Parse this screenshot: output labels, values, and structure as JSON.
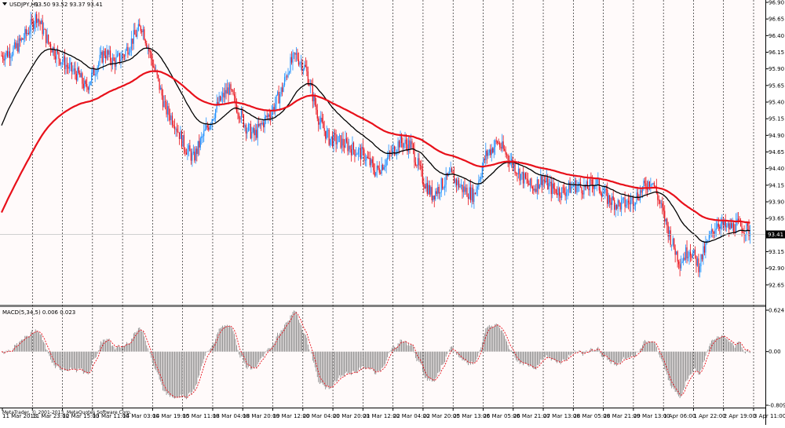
{
  "window": {
    "title": "USDJPY,H1",
    "quote": "93.50 93.52 93.37 93.41",
    "menu_icon": "triangle-down-icon",
    "copyright": "MetaTrader, © 2001-2013, MetaQuotes Software Corp."
  },
  "colors": {
    "background": "#fffafa",
    "bull": "#1e90ff",
    "bear": "#e8101a",
    "ma_fast": "#000000",
    "ma_slow": "#e8101a",
    "macd_bar": "#808080",
    "macd_signal": "#e8101a",
    "grid": "#000000"
  },
  "chart_data": [
    {
      "type": "candlestick",
      "title": "USDJPY,H1",
      "subtitle": "93.50 93.52 93.37 93.41",
      "ylim": [
        92.4,
        96.9
      ],
      "ytick_labels": [
        "96.90",
        "96.65",
        "96.40",
        "96.15",
        "95.90",
        "95.65",
        "95.40",
        "95.15",
        "94.90",
        "94.65",
        "94.40",
        "94.15",
        "93.90",
        "93.65",
        "93.40",
        "93.15",
        "92.90",
        "92.65"
      ],
      "current_price": "93.41",
      "x_tick_labels": [
        "11 Mar 2013",
        "11 Mar 23:00",
        "12 Mar 15:00",
        "13 Mar 11:00",
        "14 Mar 03:00",
        "14 Mar 19:00",
        "15 Mar 11:00",
        "18 Mar 04:00",
        "18 Mar 20:00",
        "19 Mar 12:00",
        "20 Mar 04:00",
        "20 Mar 20:00",
        "21 Mar 12:00",
        "22 Mar 04:00",
        "22 Mar 20:00",
        "25 Mar 13:00",
        "26 Mar 05:00",
        "26 Mar 21:00",
        "27 Mar 13:00",
        "28 Mar 05:00",
        "28 Mar 21:00",
        "29 Mar 13:00",
        "1 Apr 06:00",
        "1 Apr 22:00",
        "2 Apr 19:00",
        "3 Apr 11:00"
      ],
      "grid": "vertical dotted lines at x ticks",
      "close_path": [
        [
          0,
          96.1
        ],
        [
          12,
          96.2
        ],
        [
          22,
          96.45
        ],
        [
          30,
          96.7
        ],
        [
          40,
          96.3
        ],
        [
          48,
          96.1
        ],
        [
          58,
          95.9
        ],
        [
          66,
          95.8
        ],
        [
          72,
          95.6
        ],
        [
          80,
          95.9
        ],
        [
          88,
          96.15
        ],
        [
          96,
          96.0
        ],
        [
          104,
          96.1
        ],
        [
          112,
          96.35
        ],
        [
          120,
          96.55
        ],
        [
          128,
          96.05
        ],
        [
          134,
          95.7
        ],
        [
          140,
          95.3
        ],
        [
          148,
          95.1
        ],
        [
          156,
          94.75
        ],
        [
          164,
          94.55
        ],
        [
          170,
          94.8
        ],
        [
          178,
          95.1
        ],
        [
          186,
          95.4
        ],
        [
          194,
          95.6
        ],
        [
          202,
          95.3
        ],
        [
          210,
          95.0
        ],
        [
          216,
          94.9
        ],
        [
          224,
          95.1
        ],
        [
          232,
          95.3
        ],
        [
          240,
          95.6
        ],
        [
          246,
          95.95
        ],
        [
          252,
          96.1
        ],
        [
          260,
          95.9
        ],
        [
          266,
          95.5
        ],
        [
          272,
          95.1
        ],
        [
          280,
          94.85
        ],
        [
          290,
          94.8
        ],
        [
          300,
          94.7
        ],
        [
          310,
          94.6
        ],
        [
          320,
          94.35
        ],
        [
          330,
          94.55
        ],
        [
          340,
          94.8
        ],
        [
          350,
          94.75
        ],
        [
          360,
          94.25
        ],
        [
          368,
          94.0
        ],
        [
          376,
          94.15
        ],
        [
          384,
          94.3
        ],
        [
          394,
          94.1
        ],
        [
          404,
          94.0
        ],
        [
          414,
          94.6
        ],
        [
          424,
          94.8
        ],
        [
          434,
          94.55
        ],
        [
          444,
          94.3
        ],
        [
          454,
          94.1
        ],
        [
          462,
          94.25
        ],
        [
          470,
          94.1
        ],
        [
          480,
          94.05
        ],
        [
          490,
          94.15
        ],
        [
          500,
          94.1
        ],
        [
          508,
          94.2
        ],
        [
          518,
          93.95
        ],
        [
          528,
          93.85
        ],
        [
          538,
          93.9
        ],
        [
          546,
          94.05
        ],
        [
          556,
          94.25
        ],
        [
          566,
          93.7
        ],
        [
          574,
          93.25
        ],
        [
          580,
          93.0
        ],
        [
          588,
          93.2
        ],
        [
          596,
          92.95
        ],
        [
          604,
          93.3
        ],
        [
          612,
          93.6
        ],
        [
          620,
          93.5
        ],
        [
          630,
          93.55
        ],
        [
          640,
          93.45
        ]
      ]
    },
    {
      "type": "line",
      "series": [
        {
          "name": "MACD(5,34,5)",
          "values": [
            0.006
          ]
        },
        {
          "name": "signal",
          "values": [
            0.023
          ]
        }
      ],
      "ylim": [
        -0.809,
        0.624
      ],
      "ytick_labels": [
        "0.624",
        "0.00",
        "-0.809"
      ]
    }
  ]
}
